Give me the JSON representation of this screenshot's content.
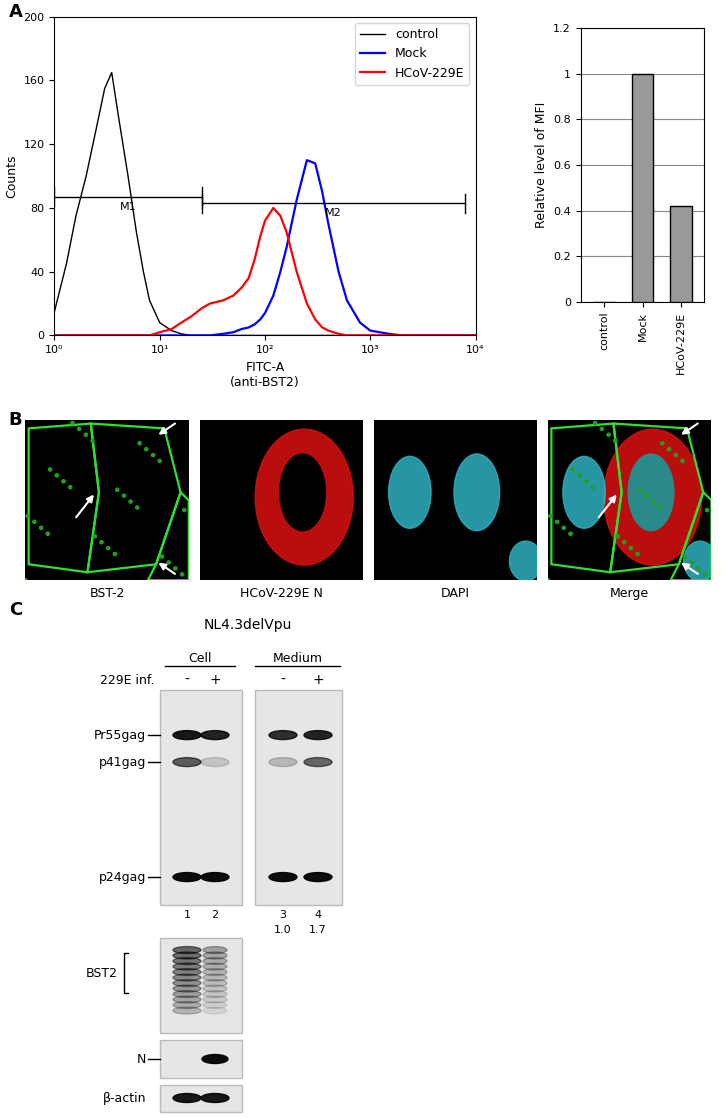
{
  "panel_labels": [
    "A",
    "B",
    "C"
  ],
  "chart_data": [
    {
      "type": "line",
      "log": "x",
      "x_label": "FITC-A\n(anti-BST2)",
      "y_label": "Counts",
      "x": [
        1,
        1.3,
        1.6,
        2,
        2.5,
        3,
        3.5,
        4,
        5,
        6,
        7,
        8,
        10,
        13,
        16,
        20,
        25,
        30,
        40,
        50,
        60,
        70,
        80,
        90,
        100,
        120,
        140,
        160,
        200,
        250,
        300,
        350,
        400,
        500,
        600,
        800,
        1000,
        1500,
        2000,
        5000,
        10000
      ],
      "series": [
        {
          "name": "control",
          "color": "#000000",
          "values": [
            15,
            45,
            75,
            100,
            130,
            155,
            165,
            140,
            100,
            65,
            40,
            22,
            8,
            3,
            1,
            0,
            0,
            0,
            0,
            0,
            0,
            0,
            0,
            0,
            0,
            0,
            0,
            0,
            0,
            0,
            0,
            0,
            0,
            0,
            0,
            0,
            0,
            0,
            0,
            0,
            0
          ]
        },
        {
          "name": "Mock",
          "color": "#0000ff",
          "values": [
            0,
            0,
            0,
            0,
            0,
            0,
            0,
            0,
            0,
            0,
            0,
            0,
            0,
            0,
            0,
            0,
            0,
            0,
            1,
            2,
            4,
            5,
            7,
            10,
            14,
            25,
            40,
            55,
            85,
            110,
            108,
            90,
            70,
            40,
            22,
            8,
            3,
            1,
            0,
            0,
            0
          ]
        },
        {
          "name": "HCoV-229E",
          "color": "#ff0000",
          "values": [
            0,
            0,
            0,
            0,
            0,
            0,
            0,
            0,
            0,
            0,
            0,
            0,
            2,
            4,
            8,
            12,
            17,
            20,
            22,
            25,
            30,
            36,
            48,
            62,
            72,
            80,
            75,
            65,
            40,
            20,
            10,
            5,
            3,
            1,
            0,
            0,
            0,
            0,
            0,
            0,
            0
          ]
        }
      ],
      "gates": [
        {
          "label": "M1",
          "x": [
            1,
            25
          ],
          "y": 87
        },
        {
          "label": "M2",
          "x": [
            25,
            8000
          ],
          "y": 83
        }
      ],
      "xlim": [
        1,
        10000
      ],
      "xticks": [
        {
          "value": 1,
          "label": "10⁰"
        },
        {
          "value": 10,
          "label": "10¹"
        },
        {
          "value": 100,
          "label": "10²"
        },
        {
          "value": 1000,
          "label": "10³"
        },
        {
          "value": 10000,
          "label": "10⁴"
        }
      ],
      "ylim": [
        0,
        200
      ],
      "yticks": [
        0,
        40,
        80,
        120,
        160,
        200
      ],
      "legend": "upper right"
    },
    {
      "type": "bar",
      "y_label": "Relative level of MFI",
      "categories": [
        "control",
        "Mock",
        "HCoV-229E"
      ],
      "values": [
        0,
        1,
        0.42
      ],
      "color": "#999999",
      "ylim": [
        0,
        1.2
      ],
      "yticks": [
        0,
        0.2,
        0.4,
        0.6,
        0.8,
        1,
        1.2
      ],
      "grid": true
    }
  ],
  "microscopy": {
    "panels": [
      "BST-2",
      "HCoV-229E N",
      "DAPI",
      "Merge"
    ]
  },
  "western_blot": {
    "title": "NL4.3delVpu",
    "groups": [
      "Cell",
      "Medium"
    ],
    "treatment_label": "229E inf.",
    "treatment": [
      "-",
      "+",
      "-",
      "+"
    ],
    "lane_numbers": [
      1,
      2,
      3,
      4
    ],
    "medium_release": [
      {
        "value": 1.0,
        "label": "1.0"
      },
      {
        "value": 1.7,
        "label": "1.7"
      }
    ],
    "bands": [
      "Pr55gag",
      "p41gag",
      "p24gag"
    ],
    "blots": [
      "BST2",
      "N",
      "β-actin"
    ]
  }
}
